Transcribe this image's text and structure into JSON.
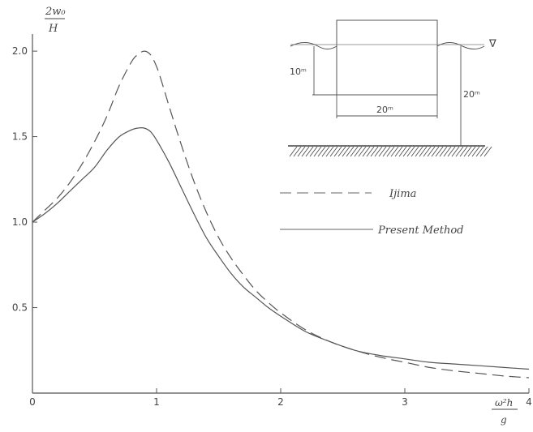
{
  "chart_data": {
    "type": "line",
    "title": "",
    "ylabel": {
      "numerator": "2w₀",
      "denominator": "H"
    },
    "xlabel": {
      "numerator": "ω²h",
      "denominator": "g"
    },
    "xlim": [
      0,
      4
    ],
    "ylim": [
      0,
      2.1
    ],
    "x_ticks": [
      "0",
      "1",
      "2",
      "3",
      "4"
    ],
    "y_ticks": [
      "0.5",
      "1.0",
      "1.5",
      "2.0"
    ],
    "grid": false,
    "legend_position": "right",
    "series": [
      {
        "name": "Ijima",
        "style": "dashed",
        "x": [
          0,
          0.1,
          0.2,
          0.3,
          0.4,
          0.5,
          0.6,
          0.7,
          0.8,
          0.85,
          0.9,
          0.95,
          1.0,
          1.05,
          1.1,
          1.2,
          1.3,
          1.4,
          1.5,
          1.6,
          1.7,
          1.8,
          1.9,
          2.0,
          2.2,
          2.4,
          2.6,
          2.8,
          3.0,
          3.2,
          3.4,
          3.6,
          3.8,
          4.0
        ],
        "y": [
          1.0,
          1.07,
          1.14,
          1.23,
          1.34,
          1.47,
          1.62,
          1.8,
          1.94,
          1.98,
          2.0,
          1.98,
          1.91,
          1.8,
          1.68,
          1.45,
          1.24,
          1.06,
          0.91,
          0.79,
          0.69,
          0.6,
          0.53,
          0.47,
          0.37,
          0.3,
          0.25,
          0.21,
          0.18,
          0.15,
          0.13,
          0.115,
          0.1,
          0.09
        ]
      },
      {
        "name": "Present Method",
        "style": "solid",
        "x": [
          0,
          0.1,
          0.2,
          0.3,
          0.4,
          0.5,
          0.6,
          0.7,
          0.8,
          0.85,
          0.9,
          0.95,
          1.0,
          1.1,
          1.2,
          1.3,
          1.4,
          1.5,
          1.6,
          1.7,
          1.8,
          1.9,
          2.0,
          2.2,
          2.4,
          2.6,
          2.8,
          3.0,
          3.2,
          3.4,
          3.6,
          3.8,
          4.0
        ],
        "y": [
          1.0,
          1.05,
          1.11,
          1.18,
          1.25,
          1.32,
          1.42,
          1.5,
          1.54,
          1.55,
          1.55,
          1.53,
          1.48,
          1.35,
          1.2,
          1.05,
          0.91,
          0.8,
          0.7,
          0.62,
          0.56,
          0.5,
          0.45,
          0.36,
          0.3,
          0.25,
          0.22,
          0.2,
          0.18,
          0.17,
          0.16,
          0.15,
          0.14
        ]
      }
    ],
    "inset_labels": {
      "draft": "10ᵐ",
      "width": "20ᵐ",
      "depth": "20ᵐ"
    }
  }
}
